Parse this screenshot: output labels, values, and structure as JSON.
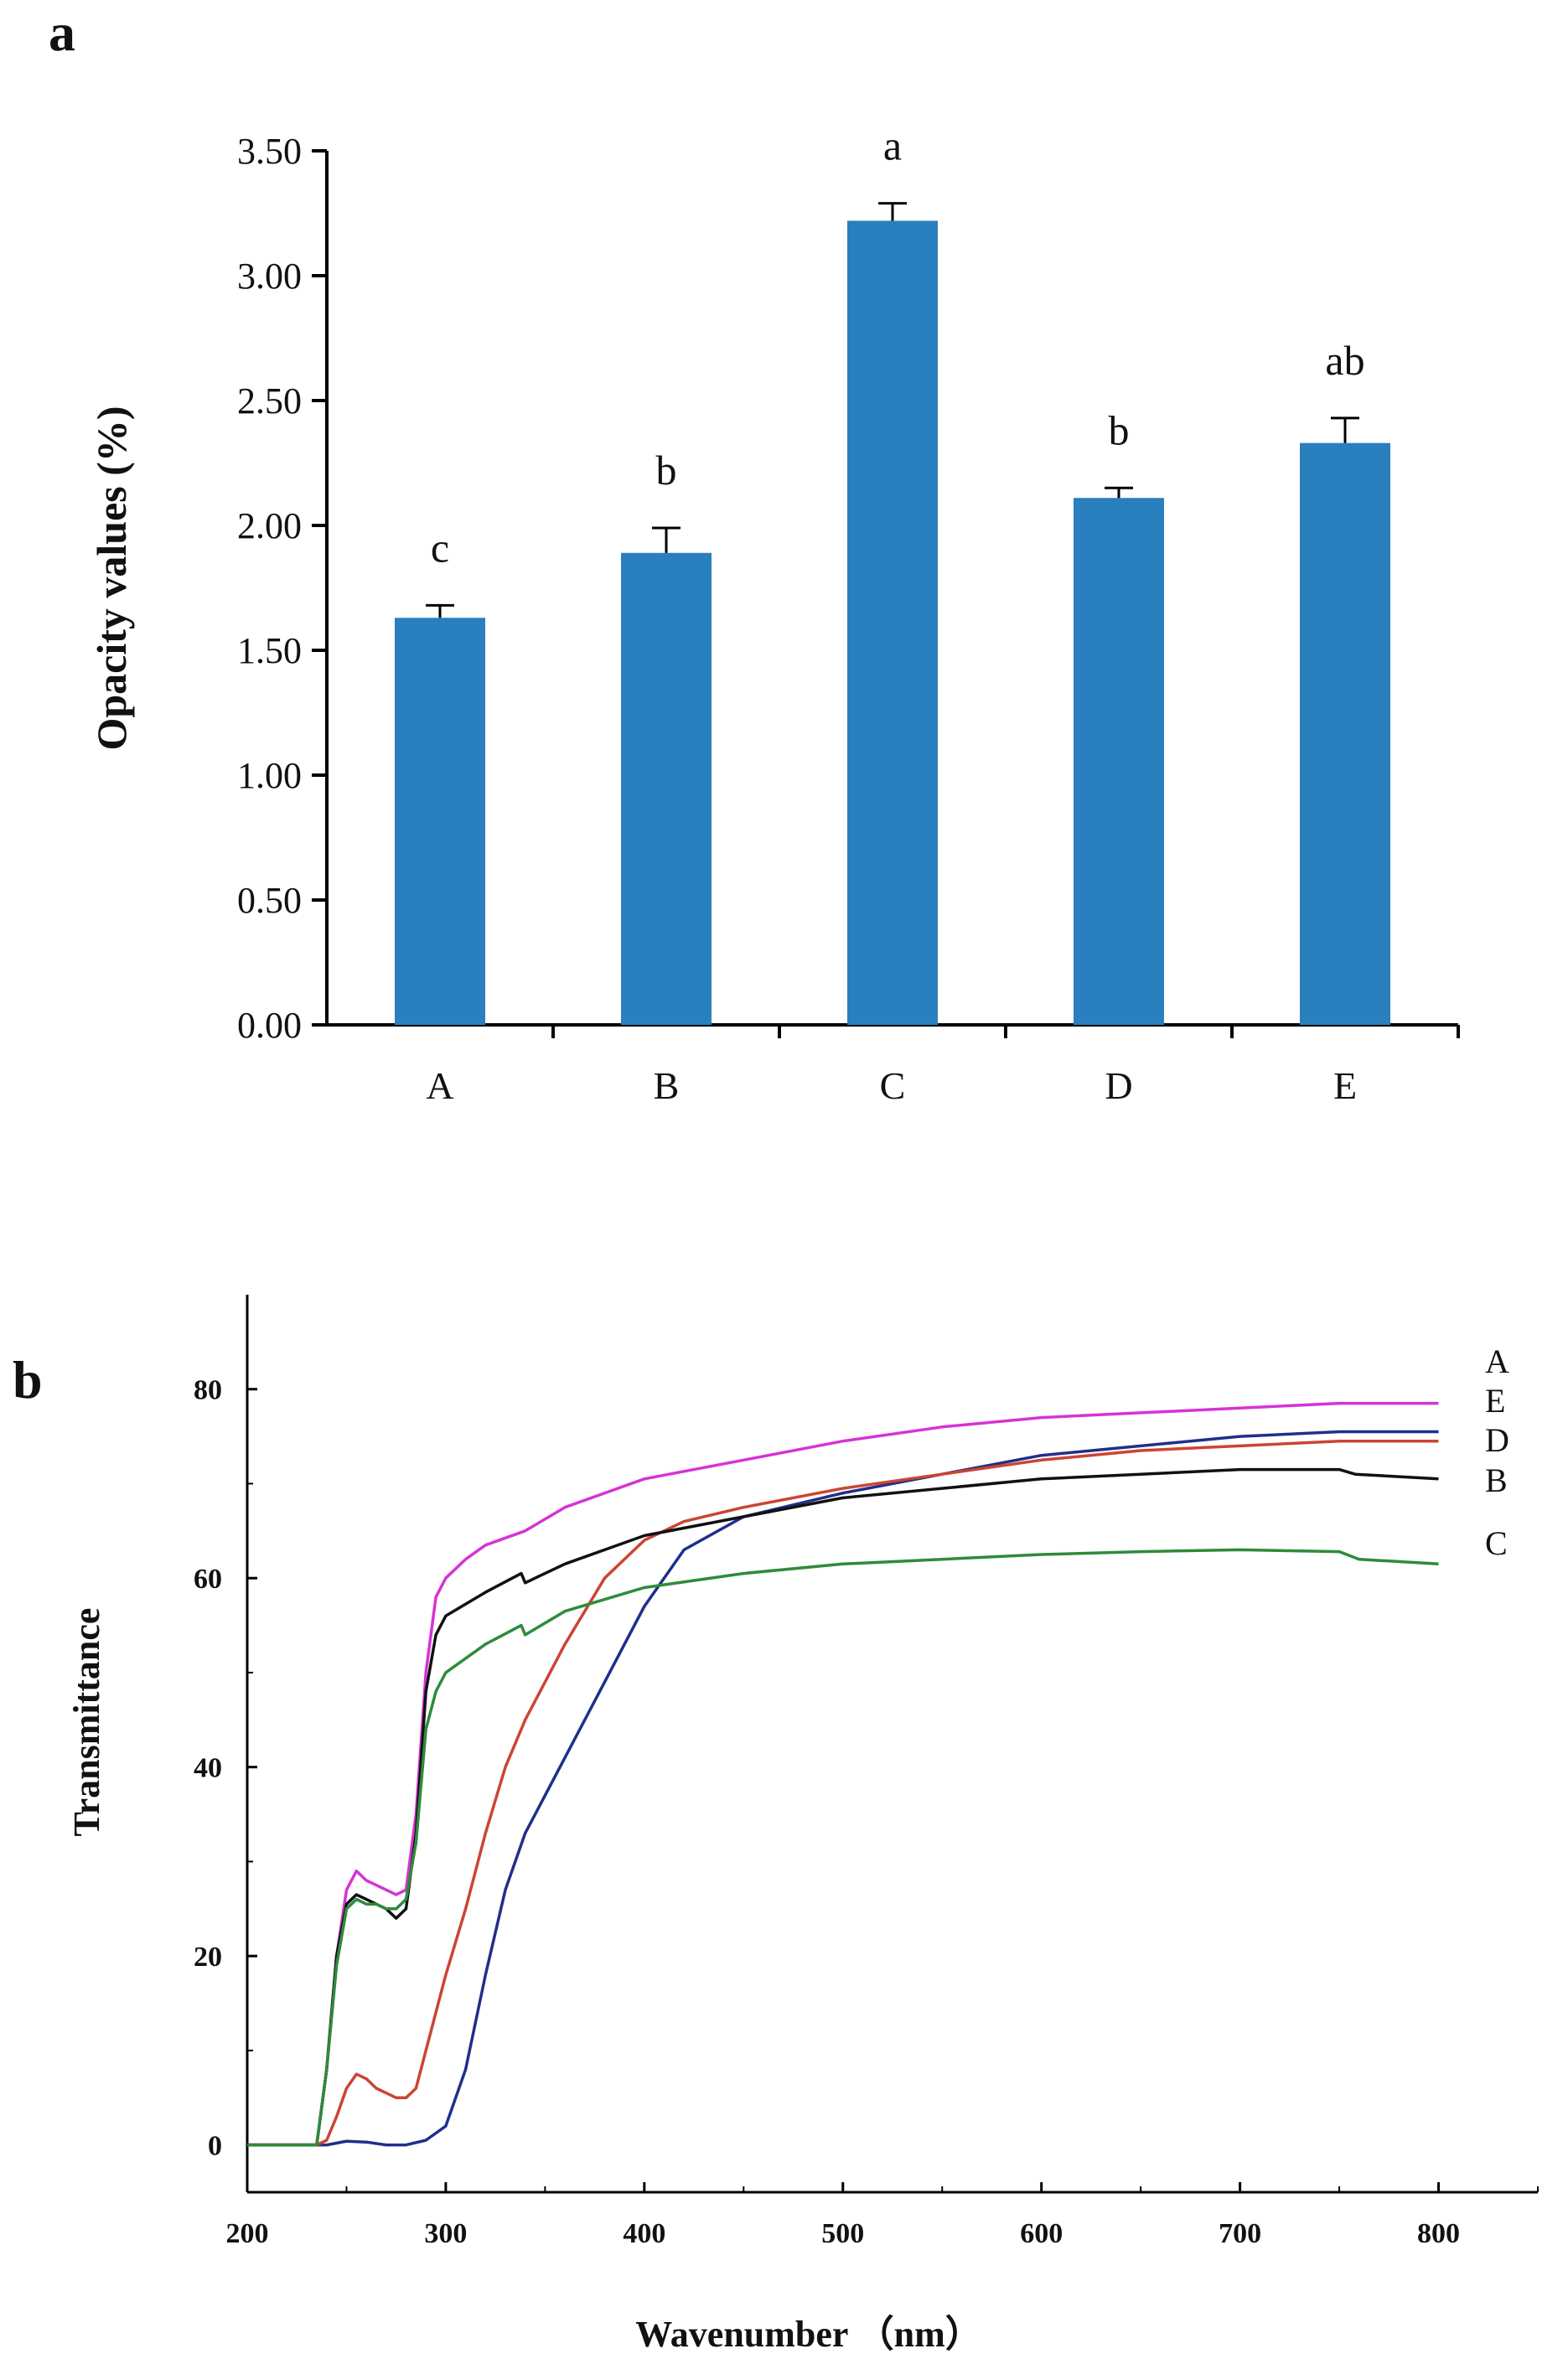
{
  "chart_data": [
    {
      "panel_label": "a",
      "type": "bar",
      "title": "",
      "xlabel": "",
      "ylabel": "Opacity values (%)",
      "categories": [
        "A",
        "B",
        "C",
        "D",
        "E"
      ],
      "values": [
        1.63,
        1.89,
        3.22,
        2.11,
        2.33
      ],
      "errors": [
        0.05,
        0.1,
        0.07,
        0.04,
        0.1
      ],
      "significance_letters": [
        "c",
        "b",
        "a",
        "b",
        "ab"
      ],
      "ylim": [
        0,
        3.5
      ],
      "yticks": [
        "0.00",
        "0.50",
        "1.00",
        "1.50",
        "2.00",
        "2.50",
        "3.00",
        "3.50"
      ],
      "bar_color": "#2a7fbe",
      "grid": false
    },
    {
      "panel_label": "b",
      "type": "line",
      "title": "",
      "xlabel": "Wavenumber （nm）",
      "ylabel": "Transmittance",
      "xlim": [
        200,
        850
      ],
      "ylim": [
        -5,
        90
      ],
      "xticks": [
        "200",
        "300",
        "400",
        "500",
        "600",
        "700",
        "800"
      ],
      "yticks": [
        "0",
        "20",
        "40",
        "60",
        "80"
      ],
      "series": [
        {
          "name": "A",
          "color": "#d633d6",
          "x": [
            200,
            235,
            240,
            245,
            250,
            255,
            260,
            265,
            270,
            275,
            280,
            285,
            290,
            295,
            300,
            310,
            320,
            340,
            360,
            400,
            450,
            500,
            550,
            600,
            650,
            700,
            750,
            800
          ],
          "y": [
            0,
            0,
            8,
            20,
            27,
            29,
            28,
            27.5,
            27,
            26.5,
            27,
            35,
            50,
            58,
            60,
            62,
            63.5,
            65,
            67.5,
            70.5,
            72.5,
            74.5,
            76,
            77,
            77.5,
            78,
            78.5,
            78.5
          ]
        },
        {
          "name": "E",
          "color": "#1f2f8a",
          "x": [
            200,
            235,
            240,
            250,
            260,
            270,
            280,
            290,
            300,
            310,
            320,
            330,
            340,
            350,
            360,
            380,
            400,
            420,
            450,
            500,
            550,
            600,
            650,
            700,
            750,
            800
          ],
          "y": [
            0,
            0,
            0,
            0.4,
            0.3,
            0,
            0,
            0.5,
            2,
            8,
            18,
            27,
            33,
            37,
            41,
            49,
            57,
            63,
            66.5,
            69,
            71,
            73,
            74,
            75,
            75.5,
            75.5
          ]
        },
        {
          "name": "D",
          "color": "#cc4433",
          "x": [
            200,
            235,
            240,
            245,
            250,
            255,
            260,
            265,
            270,
            275,
            280,
            285,
            290,
            300,
            310,
            320,
            330,
            340,
            350,
            360,
            380,
            400,
            420,
            450,
            500,
            550,
            600,
            650,
            700,
            750,
            800
          ],
          "y": [
            0,
            0,
            0.5,
            3,
            6,
            7.5,
            7,
            6,
            5.5,
            5,
            5,
            6,
            10,
            18,
            25,
            33,
            40,
            45,
            49,
            53,
            60,
            64,
            66,
            67.5,
            69.5,
            71,
            72.5,
            73.5,
            74,
            74.5,
            74.5
          ]
        },
        {
          "name": "B",
          "color": "#111111",
          "x": [
            200,
            235,
            240,
            245,
            250,
            255,
            260,
            265,
            270,
            275,
            280,
            285,
            290,
            295,
            300,
            320,
            338,
            340,
            360,
            400,
            450,
            500,
            550,
            600,
            650,
            700,
            750,
            758,
            800
          ],
          "y": [
            0,
            0,
            8,
            20,
            25.5,
            26.5,
            26,
            25.5,
            25,
            24,
            25,
            33,
            48,
            54,
            56,
            58.5,
            60.5,
            59.5,
            61.5,
            64.5,
            66.5,
            68.5,
            69.5,
            70.5,
            71,
            71.5,
            71.5,
            71,
            70.5
          ]
        },
        {
          "name": "C",
          "color": "#2e8b3a",
          "x": [
            200,
            235,
            240,
            245,
            250,
            255,
            260,
            265,
            270,
            275,
            280,
            285,
            290,
            295,
            300,
            320,
            338,
            340,
            360,
            400,
            450,
            500,
            550,
            600,
            650,
            700,
            750,
            760,
            800
          ],
          "y": [
            0,
            0,
            8,
            19,
            25,
            26,
            25.5,
            25.5,
            25,
            25,
            26,
            32,
            44,
            48,
            50,
            53,
            55,
            54,
            56.5,
            59,
            60.5,
            61.5,
            62,
            62.5,
            62.8,
            63,
            62.8,
            62,
            61.5
          ]
        }
      ]
    }
  ]
}
